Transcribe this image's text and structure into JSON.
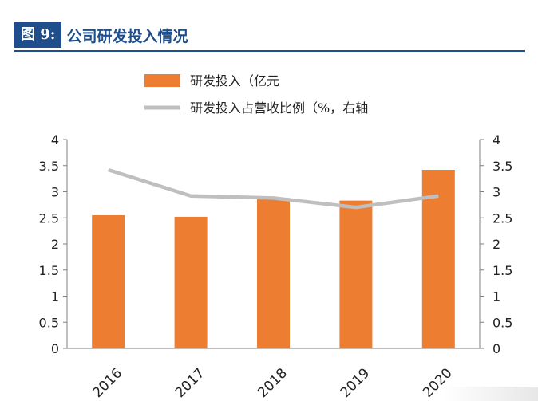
{
  "header": {
    "fig_label": "图 9:",
    "title": "公司研发投入情况"
  },
  "colors": {
    "bar": "#ED7D31",
    "line": "#BFBFBF",
    "axis": "#7F7F7F",
    "title_blue": "#1F4E8C"
  },
  "chart_data": {
    "type": "bar",
    "categories": [
      "2016",
      "2017",
      "2018",
      "2019",
      "2020"
    ],
    "series": [
      {
        "name": "研发投入（亿元",
        "type": "bar",
        "axis": "left",
        "values": [
          2.55,
          2.52,
          2.88,
          2.83,
          3.42
        ]
      },
      {
        "name": "研发投入占营收比例（%，右轴",
        "type": "line",
        "axis": "right",
        "values": [
          3.42,
          2.92,
          2.88,
          2.7,
          2.92
        ]
      }
    ],
    "ylim": [
      0,
      4
    ],
    "y2lim": [
      0,
      4
    ],
    "yticks": [
      "0",
      "0.5",
      "1",
      "1.5",
      "2",
      "2.5",
      "3",
      "3.5",
      "4"
    ],
    "y2ticks": [
      "0",
      "0.5",
      "1",
      "1.5",
      "2",
      "2.5",
      "3",
      "3.5",
      "4"
    ],
    "legend_position": "top-center",
    "grid": false
  }
}
